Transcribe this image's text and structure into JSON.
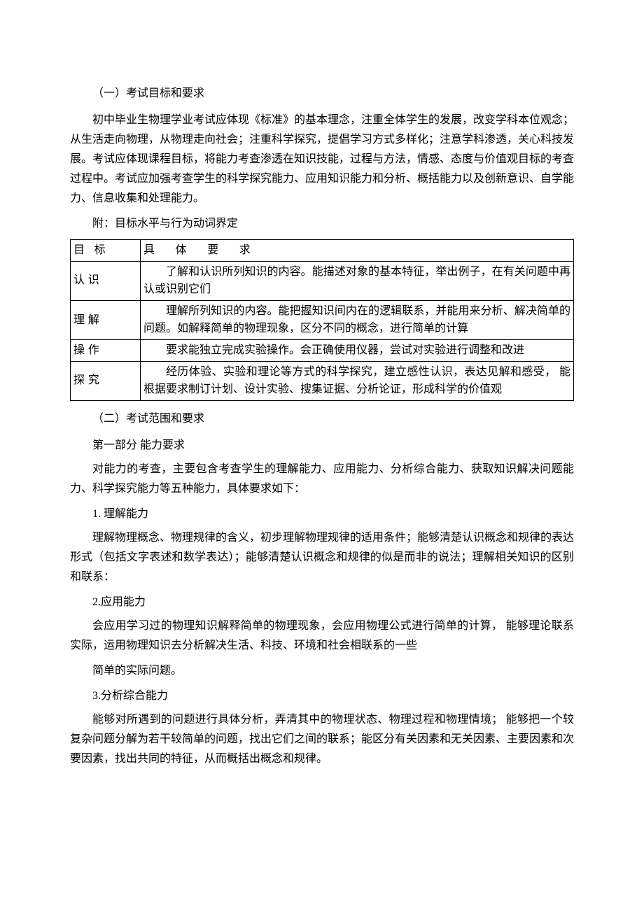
{
  "section1": {
    "title": "（一）考试目标和要求",
    "intro": "初中毕业生物理学业考试应体现《标准》的基本理念，注重全体学生的发展，改变学科本位观念；从生活走向物理，从物理走向社会；注重科学探究，提倡学习方式多样化；注意学科渗透，关心科技发展。考试应体现课程目标，将能力考查渗透在知识技能，过程与方法，情感、态度与价值观目标的考查过程中。考试应加强考查学生的科学探究能力、应用知识能力和分析、概括能力以及创新意识、自学能力、信息收集和处理能力。",
    "attach_label": "附：目标水平与行为动词界定"
  },
  "table": {
    "header_goal": "目 标",
    "header_req": "具 体 要 求",
    "rows": [
      {
        "goal": "认识",
        "req": "了解和认识所列知识的内容。能描述对象的基本特征，举出例子，在有关问题中再认或识别它们"
      },
      {
        "goal": "理解",
        "req": "理解所列知识的内容。能把握知识间内在的逻辑联系，并能用来分析、解决简单的问题。如解释简单的物理现象，区分不同的概念，进行简单的计算"
      },
      {
        "goal": "操作",
        "req": "要求能独立完成实验操作。会正确使用仪器，尝试对实验进行调整和改进"
      },
      {
        "goal": "探究",
        "req": "经历体验、实验和理论等方式的科学探究，建立感性认识，表达见解和感受， 能根据要求制订计划、设计实验、搜集证据、分析论证，形成科学的价值观"
      }
    ]
  },
  "section2": {
    "title": "（二）考试范围和要求",
    "part_label": "第一部分 能力要求",
    "part_intro": "对能力的考查，主要包含考查学生的理解能力、应用能力、分析综合能力、获取知识解决问题能力、科学探究能力等五种能力，具体要求如下：",
    "item1_title": "1. 理解能力",
    "item1_body": "理解物理概念、物理规律的含义，初步理解物理规律的适用条件；能够清楚认识概念和规律的表达形式（包括文字表述和数学表达）；能够清楚认识概念和规律的似是而非的说法；理解相关知识的区别和联系：",
    "item2_title": "2.应用能力",
    "item2_body1": "会应用学习过的物理知识解释简单的物理现象，会应用物理公式进行简单的计算， 能够理论联系实际，运用物理知识去分析解决生活、科技、环境和社会相联系的一些",
    "item2_body2": "简单的实际问题。",
    "item3_title": "3.分析综合能力",
    "item3_body": "能够对所遇到的问题进行具体分析，弄清其中的物理状态、物理过程和物理情境； 能够把一个较复杂问题分解为若干较简单的问题，找出它们之间的联系；能区分有关因素和无关因素、主要因素和次要因素，找出共同的特征，从而概括出概念和规律。"
  }
}
